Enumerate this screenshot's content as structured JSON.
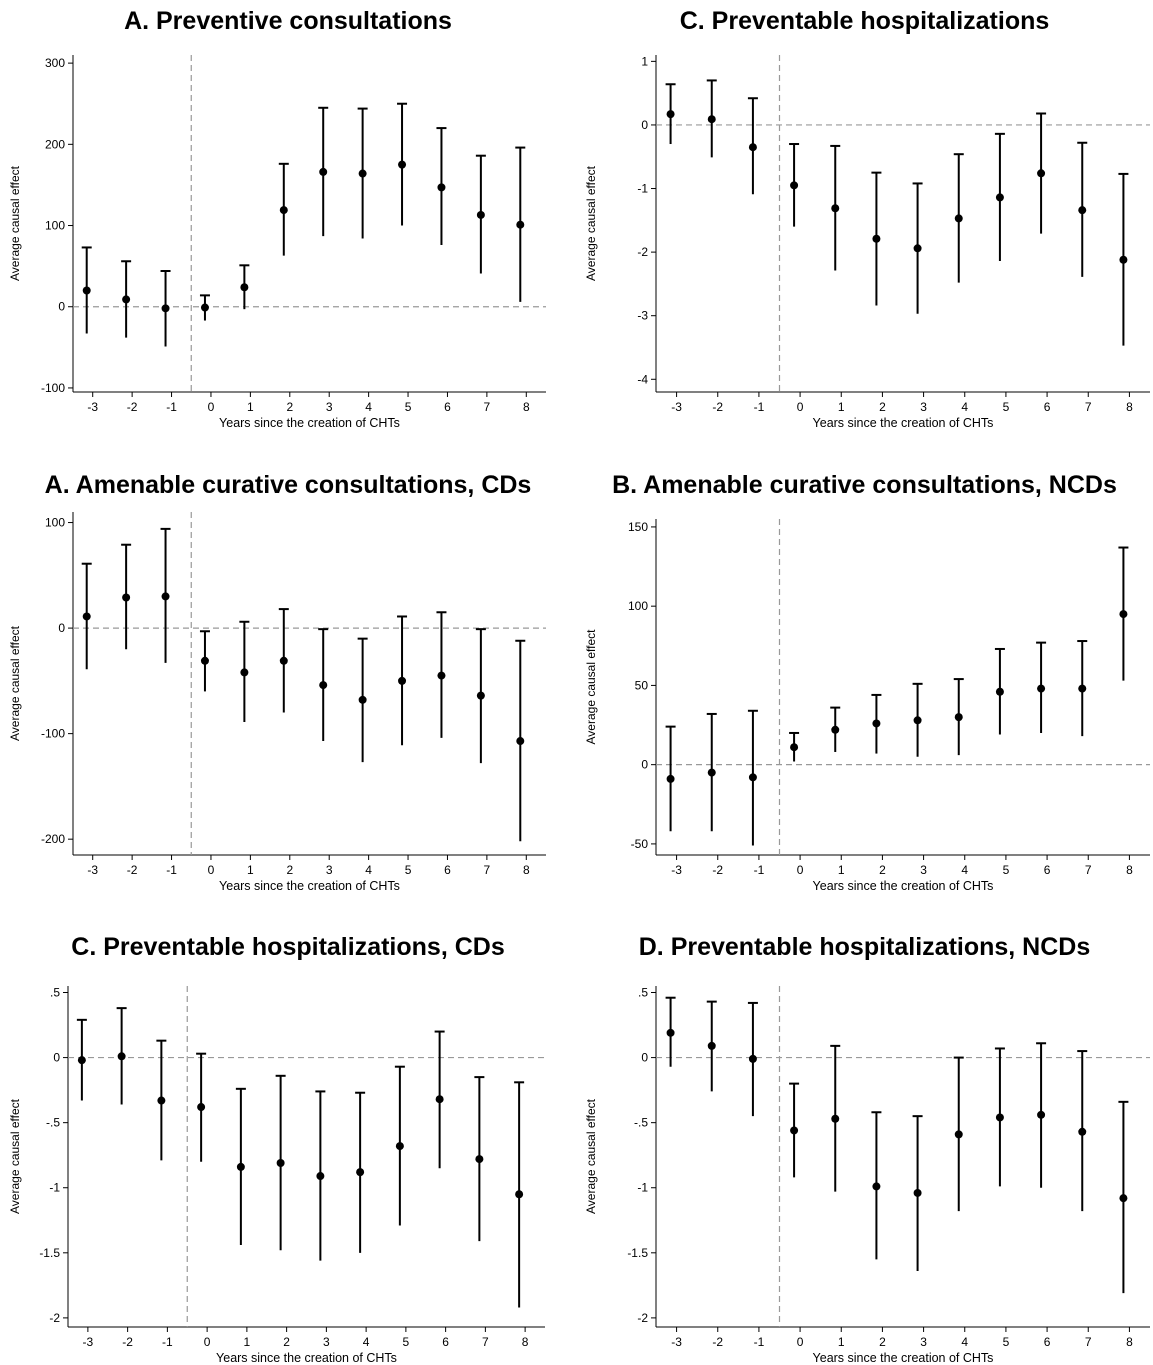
{
  "chart_data": [
    {
      "type": "scatter",
      "title": "A. Preventive consultations",
      "xlabel": "Years since the creation of CHTs",
      "ylabel": "Average causal effect",
      "xticks": [
        "-3",
        "-2",
        "-1",
        "0",
        "1",
        "2",
        "3",
        "4",
        "5",
        "6",
        "7",
        "8"
      ],
      "yticks": [
        {
          "v": 300,
          "label": "300"
        },
        {
          "v": 200,
          "label": "200"
        },
        {
          "v": 100,
          "label": "100"
        },
        {
          "v": 0,
          "label": "0"
        },
        {
          "v": -100,
          "label": "-100"
        }
      ],
      "ylim": [
        -105,
        310
      ],
      "points": [
        {
          "x": -3,
          "y": 20,
          "lo": -33,
          "hi": 73
        },
        {
          "x": -2,
          "y": 9,
          "lo": -38,
          "hi": 56
        },
        {
          "x": -1,
          "y": -2,
          "lo": -49,
          "hi": 44
        },
        {
          "x": 0,
          "y": -1,
          "lo": -17,
          "hi": 14
        },
        {
          "x": 1,
          "y": 24,
          "lo": -3,
          "hi": 51
        },
        {
          "x": 2,
          "y": 119,
          "lo": 63,
          "hi": 176
        },
        {
          "x": 3,
          "y": 166,
          "lo": 87,
          "hi": 245
        },
        {
          "x": 4,
          "y": 164,
          "lo": 84,
          "hi": 244
        },
        {
          "x": 5,
          "y": 175,
          "lo": 100,
          "hi": 250
        },
        {
          "x": 6,
          "y": 147,
          "lo": 76,
          "hi": 220
        },
        {
          "x": 7,
          "y": 113,
          "lo": 41,
          "hi": 186
        },
        {
          "x": 8,
          "y": 101,
          "lo": 6,
          "hi": 196
        }
      ]
    },
    {
      "type": "scatter",
      "title": "C. Preventable hospitalizations",
      "xlabel": "Years since the creation of CHTs",
      "ylabel": "Average causal effect",
      "xticks": [
        "-3",
        "-2",
        "-1",
        "0",
        "1",
        "2",
        "3",
        "4",
        "5",
        "6",
        "7",
        "8"
      ],
      "yticks": [
        {
          "v": 1,
          "label": "1"
        },
        {
          "v": 0,
          "label": "0"
        },
        {
          "v": -1,
          "label": "-1"
        },
        {
          "v": -2,
          "label": "-2"
        },
        {
          "v": -3,
          "label": "-3"
        },
        {
          "v": -4,
          "label": "-4"
        }
      ],
      "ylim": [
        -4.2,
        1.1
      ],
      "points": [
        {
          "x": -3,
          "y": 0.17,
          "lo": -0.3,
          "hi": 0.64
        },
        {
          "x": -2,
          "y": 0.09,
          "lo": -0.51,
          "hi": 0.7
        },
        {
          "x": -1,
          "y": -0.35,
          "lo": -1.09,
          "hi": 0.42
        },
        {
          "x": 0,
          "y": -0.95,
          "lo": -1.6,
          "hi": -0.3
        },
        {
          "x": 1,
          "y": -1.31,
          "lo": -2.29,
          "hi": -0.33
        },
        {
          "x": 2,
          "y": -1.79,
          "lo": -2.84,
          "hi": -0.75
        },
        {
          "x": 3,
          "y": -1.94,
          "lo": -2.97,
          "hi": -0.92
        },
        {
          "x": 4,
          "y": -1.47,
          "lo": -2.48,
          "hi": -0.46
        },
        {
          "x": 5,
          "y": -1.14,
          "lo": -2.14,
          "hi": -0.14
        },
        {
          "x": 6,
          "y": -0.76,
          "lo": -1.71,
          "hi": 0.18
        },
        {
          "x": 7,
          "y": -1.34,
          "lo": -2.39,
          "hi": -0.28
        },
        {
          "x": 8,
          "y": -2.12,
          "lo": -3.47,
          "hi": -0.77
        }
      ]
    },
    {
      "type": "scatter",
      "title": "A. Amenable curative consultations, CDs",
      "xlabel": "Years since the creation of CHTs",
      "ylabel": "Average causal effect",
      "xticks": [
        "-3",
        "-2",
        "-1",
        "0",
        "1",
        "2",
        "3",
        "4",
        "5",
        "6",
        "7",
        "8"
      ],
      "yticks": [
        {
          "v": 100,
          "label": "100"
        },
        {
          "v": 0,
          "label": "0"
        },
        {
          "v": -100,
          "label": "-100"
        },
        {
          "v": -200,
          "label": "-200"
        }
      ],
      "ylim": [
        -215,
        110
      ],
      "points": [
        {
          "x": -3,
          "y": 11,
          "lo": -39,
          "hi": 61
        },
        {
          "x": -2,
          "y": 29,
          "lo": -20,
          "hi": 79
        },
        {
          "x": -1,
          "y": 30,
          "lo": -33,
          "hi": 94
        },
        {
          "x": 0,
          "y": -31,
          "lo": -60,
          "hi": -3
        },
        {
          "x": 1,
          "y": -42,
          "lo": -89,
          "hi": 6
        },
        {
          "x": 2,
          "y": -31,
          "lo": -80,
          "hi": 18
        },
        {
          "x": 3,
          "y": -54,
          "lo": -107,
          "hi": -1
        },
        {
          "x": 4,
          "y": -68,
          "lo": -127,
          "hi": -10
        },
        {
          "x": 5,
          "y": -50,
          "lo": -111,
          "hi": 11
        },
        {
          "x": 6,
          "y": -45,
          "lo": -104,
          "hi": 15
        },
        {
          "x": 7,
          "y": -64,
          "lo": -128,
          "hi": -1
        },
        {
          "x": 8,
          "y": -107,
          "lo": -202,
          "hi": -12
        }
      ]
    },
    {
      "type": "scatter",
      "title": "B. Amenable curative consultations, NCDs",
      "xlabel": "Years since the creation of CHTs",
      "ylabel": "Average causal effect",
      "xticks": [
        "-3",
        "-2",
        "-1",
        "0",
        "1",
        "2",
        "3",
        "4",
        "5",
        "6",
        "7",
        "8"
      ],
      "yticks": [
        {
          "v": 150,
          "label": "150"
        },
        {
          "v": 100,
          "label": "100"
        },
        {
          "v": 50,
          "label": "50"
        },
        {
          "v": 0,
          "label": "0"
        },
        {
          "v": -50,
          "label": "-50"
        }
      ],
      "ylim": [
        -57,
        155
      ],
      "points": [
        {
          "x": -3,
          "y": -9,
          "lo": -42,
          "hi": 24
        },
        {
          "x": -2,
          "y": -5,
          "lo": -42,
          "hi": 32
        },
        {
          "x": -1,
          "y": -8,
          "lo": -51,
          "hi": 34
        },
        {
          "x": 0,
          "y": 11,
          "lo": 2,
          "hi": 20
        },
        {
          "x": 1,
          "y": 22,
          "lo": 8,
          "hi": 36
        },
        {
          "x": 2,
          "y": 26,
          "lo": 7,
          "hi": 44
        },
        {
          "x": 3,
          "y": 28,
          "lo": 5,
          "hi": 51
        },
        {
          "x": 4,
          "y": 30,
          "lo": 6,
          "hi": 54
        },
        {
          "x": 5,
          "y": 46,
          "lo": 19,
          "hi": 73
        },
        {
          "x": 6,
          "y": 48,
          "lo": 20,
          "hi": 77
        },
        {
          "x": 7,
          "y": 48,
          "lo": 18,
          "hi": 78
        },
        {
          "x": 8,
          "y": 95,
          "lo": 53,
          "hi": 137
        }
      ]
    },
    {
      "type": "scatter",
      "title": "C. Preventable hospitalizations, CDs",
      "xlabel": "Years since the creation of CHTs",
      "ylabel": "Average causal effect",
      "xticks": [
        "-3",
        "-2",
        "-1",
        "0",
        "1",
        "2",
        "3",
        "4",
        "5",
        "6",
        "7",
        "8"
      ],
      "yticks": [
        {
          "v": 0.5,
          "label": ".5"
        },
        {
          "v": 0,
          "label": "0"
        },
        {
          "v": -0.5,
          "label": "-.5"
        },
        {
          "v": -1,
          "label": "-1"
        },
        {
          "v": -1.5,
          "label": "-1.5"
        },
        {
          "v": -2,
          "label": "-2"
        }
      ],
      "ylim": [
        -2.07,
        0.55
      ],
      "points": [
        {
          "x": -3,
          "y": -0.02,
          "lo": -0.33,
          "hi": 0.29
        },
        {
          "x": -2,
          "y": 0.01,
          "lo": -0.36,
          "hi": 0.38
        },
        {
          "x": -1,
          "y": -0.33,
          "lo": -0.79,
          "hi": 0.13
        },
        {
          "x": 0,
          "y": -0.38,
          "lo": -0.8,
          "hi": 0.03
        },
        {
          "x": 1,
          "y": -0.84,
          "lo": -1.44,
          "hi": -0.24
        },
        {
          "x": 2,
          "y": -0.81,
          "lo": -1.48,
          "hi": -0.14
        },
        {
          "x": 3,
          "y": -0.91,
          "lo": -1.56,
          "hi": -0.26
        },
        {
          "x": 4,
          "y": -0.88,
          "lo": -1.5,
          "hi": -0.27
        },
        {
          "x": 5,
          "y": -0.68,
          "lo": -1.29,
          "hi": -0.07
        },
        {
          "x": 6,
          "y": -0.32,
          "lo": -0.85,
          "hi": 0.2
        },
        {
          "x": 7,
          "y": -0.78,
          "lo": -1.41,
          "hi": -0.15
        },
        {
          "x": 8,
          "y": -1.05,
          "lo": -1.92,
          "hi": -0.19
        }
      ]
    },
    {
      "type": "scatter",
      "title": "D. Preventable hospitalizations, NCDs",
      "xlabel": "Years since the creation of CHTs",
      "ylabel": "Average causal effect",
      "xticks": [
        "-3",
        "-2",
        "-1",
        "0",
        "1",
        "2",
        "3",
        "4",
        "5",
        "6",
        "7",
        "8"
      ],
      "yticks": [
        {
          "v": 0.5,
          "label": ".5"
        },
        {
          "v": 0,
          "label": "0"
        },
        {
          "v": -0.5,
          "label": "-.5"
        },
        {
          "v": -1,
          "label": "-1"
        },
        {
          "v": -1.5,
          "label": "-1.5"
        },
        {
          "v": -2,
          "label": "-2"
        }
      ],
      "ylim": [
        -2.07,
        0.55
      ],
      "points": [
        {
          "x": -3,
          "y": 0.19,
          "lo": -0.07,
          "hi": 0.46
        },
        {
          "x": -2,
          "y": 0.09,
          "lo": -0.26,
          "hi": 0.43
        },
        {
          "x": -1,
          "y": -0.01,
          "lo": -0.45,
          "hi": 0.42
        },
        {
          "x": 0,
          "y": -0.56,
          "lo": -0.92,
          "hi": -0.2
        },
        {
          "x": 1,
          "y": -0.47,
          "lo": -1.03,
          "hi": 0.09
        },
        {
          "x": 2,
          "y": -0.99,
          "lo": -1.55,
          "hi": -0.42
        },
        {
          "x": 3,
          "y": -1.04,
          "lo": -1.64,
          "hi": -0.45
        },
        {
          "x": 4,
          "y": -0.59,
          "lo": -1.18,
          "hi": 0.0
        },
        {
          "x": 5,
          "y": -0.46,
          "lo": -0.99,
          "hi": 0.07
        },
        {
          "x": 6,
          "y": -0.44,
          "lo": -1.0,
          "hi": 0.11
        },
        {
          "x": 7,
          "y": -0.57,
          "lo": -1.18,
          "hi": 0.05
        },
        {
          "x": 8,
          "y": -1.08,
          "lo": -1.81,
          "hi": -0.34
        }
      ]
    }
  ]
}
